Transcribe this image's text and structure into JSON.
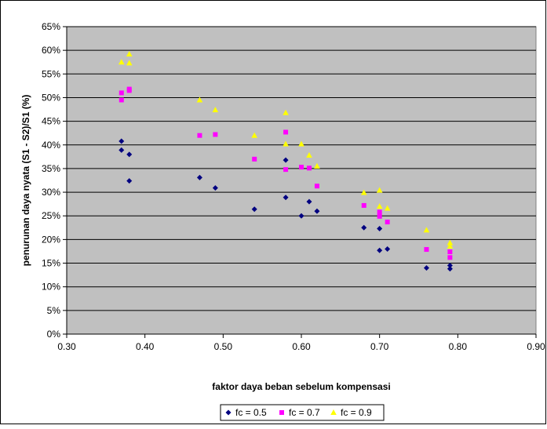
{
  "chart_data": {
    "type": "scatter",
    "title": "",
    "xlabel": "faktor daya beban sebelum kompensasi",
    "ylabel": "penurunan daya nyata (S1 - S2)/S1 (%)",
    "xlim": [
      0.3,
      0.9
    ],
    "ylim": [
      0,
      65
    ],
    "x_ticks": [
      "0.30",
      "0.40",
      "0.50",
      "0.60",
      "0.70",
      "0.80",
      "0.90"
    ],
    "y_ticks": [
      "0%",
      "5%",
      "10%",
      "15%",
      "20%",
      "25%",
      "30%",
      "35%",
      "40%",
      "45%",
      "50%",
      "55%",
      "60%",
      "65%"
    ],
    "grid": true,
    "plot_background": "#C0C0C0",
    "legend_position": "bottom",
    "series": [
      {
        "name": "fc = 0.5",
        "marker": "diamond",
        "color": "#000080",
        "points": [
          [
            0.37,
            40.8
          ],
          [
            0.37,
            38.9
          ],
          [
            0.38,
            38.0
          ],
          [
            0.38,
            32.4
          ],
          [
            0.47,
            33.1
          ],
          [
            0.49,
            30.9
          ],
          [
            0.54,
            26.4
          ],
          [
            0.58,
            36.8
          ],
          [
            0.58,
            28.9
          ],
          [
            0.6,
            25.0
          ],
          [
            0.61,
            28.0
          ],
          [
            0.62,
            26.0
          ],
          [
            0.68,
            22.5
          ],
          [
            0.7,
            22.3
          ],
          [
            0.7,
            17.7
          ],
          [
            0.71,
            18.0
          ],
          [
            0.76,
            14.0
          ],
          [
            0.79,
            14.5
          ],
          [
            0.79,
            13.8
          ]
        ]
      },
      {
        "name": "fc = 0.7",
        "marker": "square",
        "color": "#FF00FF",
        "points": [
          [
            0.37,
            51.0
          ],
          [
            0.37,
            49.5
          ],
          [
            0.38,
            51.8
          ],
          [
            0.38,
            51.5
          ],
          [
            0.47,
            42.0
          ],
          [
            0.49,
            42.2
          ],
          [
            0.54,
            37.0
          ],
          [
            0.58,
            42.7
          ],
          [
            0.58,
            34.8
          ],
          [
            0.6,
            35.3
          ],
          [
            0.61,
            35.1
          ],
          [
            0.62,
            31.3
          ],
          [
            0.68,
            27.2
          ],
          [
            0.7,
            25.8
          ],
          [
            0.7,
            24.9
          ],
          [
            0.71,
            23.7
          ],
          [
            0.76,
            17.9
          ],
          [
            0.79,
            17.4
          ],
          [
            0.79,
            16.2
          ]
        ]
      },
      {
        "name": "fc = 0.9",
        "marker": "triangle",
        "color": "#FFFF00",
        "points": [
          [
            0.37,
            57.5
          ],
          [
            0.38,
            57.3
          ],
          [
            0.38,
            59.2
          ],
          [
            0.47,
            49.5
          ],
          [
            0.49,
            47.4
          ],
          [
            0.54,
            42.0
          ],
          [
            0.58,
            46.8
          ],
          [
            0.58,
            40.2
          ],
          [
            0.6,
            40.2
          ],
          [
            0.61,
            37.8
          ],
          [
            0.62,
            35.5
          ],
          [
            0.68,
            29.9
          ],
          [
            0.7,
            30.4
          ],
          [
            0.7,
            27.0
          ],
          [
            0.71,
            26.6
          ],
          [
            0.76,
            22.0
          ],
          [
            0.79,
            19.3
          ],
          [
            0.79,
            18.6
          ]
        ]
      }
    ]
  }
}
